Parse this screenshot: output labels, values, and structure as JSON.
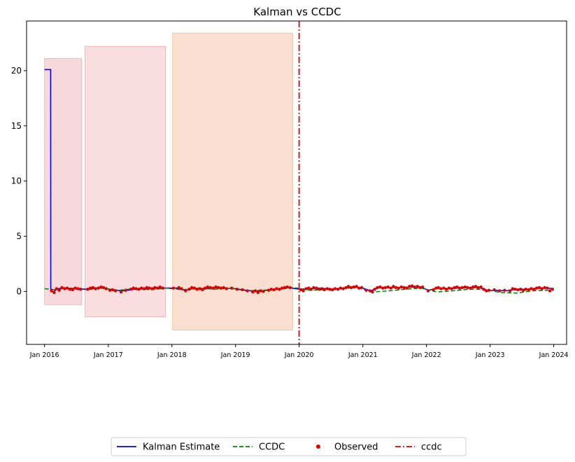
{
  "chart_data": {
    "type": "line",
    "title": "Kalman vs CCDC",
    "xlabel": "",
    "ylabel": "",
    "xlim": [
      "2015-09-20",
      "2024-03-15"
    ],
    "ylim": [
      -4.8,
      24.5
    ],
    "yticks": [
      0,
      5,
      10,
      15,
      20
    ],
    "xticks": [
      {
        "date": "2016-01-01",
        "label": "Jan 2016"
      },
      {
        "date": "2017-01-01",
        "label": "Jan 2017"
      },
      {
        "date": "2018-01-01",
        "label": "Jan 2018"
      },
      {
        "date": "2019-01-01",
        "label": "Jan 2019"
      },
      {
        "date": "2020-01-01",
        "label": "Jan 2020"
      },
      {
        "date": "2021-01-01",
        "label": "Jan 2021"
      },
      {
        "date": "2022-01-01",
        "label": "Jan 2022"
      },
      {
        "date": "2023-01-01",
        "label": "Jan 2023"
      },
      {
        "date": "2024-01-01",
        "label": "Jan 2024"
      }
    ],
    "shaded_regions": [
      {
        "start": "2016-01-01",
        "end": "2016-08-01",
        "ymin": -1.2,
        "ymax": 21.1,
        "color": "#f1b3b8",
        "opacity": 0.5
      },
      {
        "start": "2016-08-20",
        "end": "2017-11-25",
        "ymin": -2.3,
        "ymax": 22.2,
        "color": "#f1b3b8",
        "opacity": 0.45
      },
      {
        "start": "2018-01-05",
        "end": "2019-11-25",
        "ymin": -3.5,
        "ymax": 23.4,
        "color": "#f5bfa2",
        "opacity": 0.5
      }
    ],
    "vline": {
      "date": "2020-01-01",
      "color": "#e00000",
      "style": "dashdot"
    },
    "series": [
      {
        "name": "Kalman Estimate",
        "kind": "line",
        "color": "#0000ff",
        "points": [
          [
            "2016-01-01",
            20.1
          ],
          [
            "2016-02-05",
            20.1
          ],
          [
            "2016-02-06",
            0.0
          ],
          [
            "2016-02-20",
            -0.05
          ],
          [
            "2016-03-15",
            0.25
          ],
          [
            "2016-05-01",
            0.3
          ],
          [
            "2016-07-01",
            0.25
          ],
          [
            "2016-09-01",
            0.2
          ],
          [
            "2016-11-01",
            0.3
          ],
          [
            "2016-12-15",
            0.3
          ],
          [
            "2017-01-20",
            0.1
          ],
          [
            "2017-04-01",
            0.05
          ],
          [
            "2017-06-01",
            0.2
          ],
          [
            "2017-08-01",
            0.25
          ],
          [
            "2017-10-01",
            0.3
          ],
          [
            "2017-12-01",
            0.3
          ],
          [
            "2018-02-01",
            0.3
          ],
          [
            "2018-03-15",
            0.1
          ],
          [
            "2018-05-01",
            0.25
          ],
          [
            "2018-07-01",
            0.2
          ],
          [
            "2018-09-01",
            0.35
          ],
          [
            "2018-11-01",
            0.3
          ],
          [
            "2019-01-01",
            0.25
          ],
          [
            "2019-03-01",
            0.1
          ],
          [
            "2019-05-01",
            0.0
          ],
          [
            "2019-07-01",
            0.1
          ],
          [
            "2019-09-01",
            0.2
          ],
          [
            "2019-11-01",
            0.35
          ],
          [
            "2020-01-01",
            0.2
          ],
          [
            "2020-03-01",
            0.25
          ],
          [
            "2020-05-01",
            0.3
          ],
          [
            "2020-07-01",
            0.2
          ],
          [
            "2020-09-01",
            0.25
          ],
          [
            "2020-11-01",
            0.4
          ],
          [
            "2021-01-01",
            0.3
          ],
          [
            "2021-02-15",
            0.05
          ],
          [
            "2021-04-01",
            0.35
          ],
          [
            "2021-06-01",
            0.35
          ],
          [
            "2021-08-01",
            0.35
          ],
          [
            "2021-10-01",
            0.4
          ],
          [
            "2021-12-01",
            0.35
          ],
          [
            "2022-01-15",
            0.1
          ],
          [
            "2022-03-01",
            0.3
          ],
          [
            "2022-05-01",
            0.25
          ],
          [
            "2022-07-01",
            0.3
          ],
          [
            "2022-09-01",
            0.35
          ],
          [
            "2022-11-01",
            0.35
          ],
          [
            "2022-12-15",
            0.05
          ],
          [
            "2023-02-01",
            0.1
          ],
          [
            "2023-04-01",
            0.05
          ],
          [
            "2023-06-01",
            0.2
          ],
          [
            "2023-08-01",
            0.2
          ],
          [
            "2023-10-01",
            0.3
          ],
          [
            "2023-12-01",
            0.3
          ],
          [
            "2024-01-01",
            0.25
          ]
        ]
      },
      {
        "name": "CCDC",
        "kind": "dashed-line",
        "color": "#008000",
        "points": [
          [
            "2016-01-01",
            0.25
          ],
          [
            "2016-03-01",
            0.15
          ],
          [
            "2016-06-01",
            0.3
          ],
          [
            "2016-09-01",
            0.15
          ],
          [
            "2016-12-01",
            0.3
          ],
          [
            "2017-03-01",
            0.1
          ],
          [
            "2017-06-01",
            0.25
          ],
          [
            "2017-09-01",
            0.15
          ],
          [
            "2017-12-01",
            0.3
          ],
          [
            "2018-03-01",
            0.15
          ],
          [
            "2018-06-01",
            0.3
          ],
          [
            "2018-09-01",
            0.2
          ],
          [
            "2018-12-01",
            0.3
          ],
          [
            "2019-03-01",
            0.05
          ],
          [
            "2019-06-01",
            0.1
          ],
          [
            "2019-09-01",
            0.2
          ],
          [
            "2019-12-01",
            0.35
          ],
          [
            "2020-03-01",
            0.1
          ],
          [
            "2020-06-01",
            0.15
          ],
          [
            "2020-09-01",
            0.25
          ],
          [
            "2020-12-01",
            0.35
          ],
          [
            "2021-03-01",
            -0.05
          ],
          [
            "2021-06-01",
            0.05
          ],
          [
            "2021-09-01",
            0.2
          ],
          [
            "2021-12-01",
            0.3
          ],
          [
            "2022-03-01",
            -0.05
          ],
          [
            "2022-06-01",
            0.05
          ],
          [
            "2022-09-01",
            0.2
          ],
          [
            "2022-12-01",
            0.2
          ],
          [
            "2023-03-01",
            -0.1
          ],
          [
            "2023-06-01",
            -0.15
          ],
          [
            "2023-09-01",
            0.05
          ],
          [
            "2023-12-01",
            0.1
          ]
        ]
      },
      {
        "name": "Observed",
        "kind": "scatter",
        "color": "#e00000",
        "points": [
          [
            "2016-02-10",
            0.05
          ],
          [
            "2016-02-25",
            -0.1
          ],
          [
            "2016-03-10",
            0.25
          ],
          [
            "2016-03-25",
            0.1
          ],
          [
            "2016-04-10",
            0.35
          ],
          [
            "2016-04-25",
            0.25
          ],
          [
            "2016-05-10",
            0.3
          ],
          [
            "2016-05-25",
            0.2
          ],
          [
            "2016-06-10",
            0.15
          ],
          [
            "2016-06-25",
            0.3
          ],
          [
            "2016-07-10",
            0.25
          ],
          [
            "2016-07-25",
            0.2
          ],
          [
            "2016-09-05",
            0.2
          ],
          [
            "2016-09-20",
            0.3
          ],
          [
            "2016-10-05",
            0.35
          ],
          [
            "2016-10-20",
            0.25
          ],
          [
            "2016-11-05",
            0.3
          ],
          [
            "2016-11-20",
            0.4
          ],
          [
            "2016-12-05",
            0.35
          ],
          [
            "2016-12-20",
            0.25
          ],
          [
            "2017-01-10",
            0.1
          ],
          [
            "2017-01-25",
            0.15
          ],
          [
            "2017-02-10",
            0.05
          ],
          [
            "2017-03-15",
            -0.05
          ],
          [
            "2017-04-10",
            0.1
          ],
          [
            "2017-05-10",
            0.2
          ],
          [
            "2017-05-25",
            0.3
          ],
          [
            "2017-06-10",
            0.25
          ],
          [
            "2017-06-25",
            0.2
          ],
          [
            "2017-07-10",
            0.3
          ],
          [
            "2017-07-25",
            0.25
          ],
          [
            "2017-08-10",
            0.35
          ],
          [
            "2017-08-25",
            0.3
          ],
          [
            "2017-09-10",
            0.25
          ],
          [
            "2017-09-25",
            0.35
          ],
          [
            "2017-10-10",
            0.3
          ],
          [
            "2017-10-25",
            0.4
          ],
          [
            "2017-11-10",
            0.3
          ],
          [
            "2018-01-10",
            0.3
          ],
          [
            "2018-02-10",
            0.35
          ],
          [
            "2018-02-25",
            0.25
          ],
          [
            "2018-03-20",
            0.05
          ],
          [
            "2018-04-10",
            0.2
          ],
          [
            "2018-04-25",
            0.35
          ],
          [
            "2018-05-10",
            0.3
          ],
          [
            "2018-05-25",
            0.2
          ],
          [
            "2018-06-10",
            0.25
          ],
          [
            "2018-06-25",
            0.15
          ],
          [
            "2018-07-10",
            0.3
          ],
          [
            "2018-07-25",
            0.4
          ],
          [
            "2018-08-10",
            0.35
          ],
          [
            "2018-08-25",
            0.3
          ],
          [
            "2018-09-10",
            0.4
          ],
          [
            "2018-09-25",
            0.35
          ],
          [
            "2018-10-10",
            0.3
          ],
          [
            "2018-10-25",
            0.35
          ],
          [
            "2018-11-10",
            0.25
          ],
          [
            "2018-12-10",
            0.3
          ],
          [
            "2019-01-10",
            0.2
          ],
          [
            "2019-02-10",
            0.15
          ],
          [
            "2019-03-10",
            0.05
          ],
          [
            "2019-04-10",
            -0.05
          ],
          [
            "2019-04-25",
            0.05
          ],
          [
            "2019-05-10",
            -0.1
          ],
          [
            "2019-05-25",
            0.05
          ],
          [
            "2019-06-10",
            0.0
          ],
          [
            "2019-07-10",
            0.1
          ],
          [
            "2019-07-25",
            0.2
          ],
          [
            "2019-08-10",
            0.15
          ],
          [
            "2019-08-25",
            0.25
          ],
          [
            "2019-09-10",
            0.2
          ],
          [
            "2019-09-25",
            0.3
          ],
          [
            "2019-10-10",
            0.35
          ],
          [
            "2019-10-25",
            0.4
          ],
          [
            "2019-11-10",
            0.35
          ],
          [
            "2020-01-10",
            0.15
          ],
          [
            "2020-01-25",
            0.05
          ],
          [
            "2020-02-10",
            0.25
          ],
          [
            "2020-02-25",
            0.3
          ],
          [
            "2020-03-10",
            0.2
          ],
          [
            "2020-03-25",
            0.35
          ],
          [
            "2020-04-10",
            0.3
          ],
          [
            "2020-04-25",
            0.2
          ],
          [
            "2020-05-10",
            0.25
          ],
          [
            "2020-05-25",
            0.15
          ],
          [
            "2020-06-10",
            0.25
          ],
          [
            "2020-06-25",
            0.2
          ],
          [
            "2020-07-10",
            0.15
          ],
          [
            "2020-07-25",
            0.25
          ],
          [
            "2020-08-10",
            0.2
          ],
          [
            "2020-08-25",
            0.3
          ],
          [
            "2020-09-10",
            0.25
          ],
          [
            "2020-09-25",
            0.35
          ],
          [
            "2020-10-10",
            0.45
          ],
          [
            "2020-10-25",
            0.35
          ],
          [
            "2020-11-10",
            0.4
          ],
          [
            "2020-11-25",
            0.45
          ],
          [
            "2020-12-10",
            0.3
          ],
          [
            "2020-12-25",
            0.35
          ],
          [
            "2021-01-20",
            0.1
          ],
          [
            "2021-02-10",
            0.05
          ],
          [
            "2021-02-25",
            -0.05
          ],
          [
            "2021-03-10",
            0.2
          ],
          [
            "2021-03-25",
            0.35
          ],
          [
            "2021-04-10",
            0.4
          ],
          [
            "2021-04-25",
            0.3
          ],
          [
            "2021-05-10",
            0.35
          ],
          [
            "2021-05-25",
            0.4
          ],
          [
            "2021-06-10",
            0.3
          ],
          [
            "2021-06-25",
            0.45
          ],
          [
            "2021-07-10",
            0.35
          ],
          [
            "2021-07-25",
            0.3
          ],
          [
            "2021-08-10",
            0.4
          ],
          [
            "2021-08-25",
            0.35
          ],
          [
            "2021-09-10",
            0.3
          ],
          [
            "2021-09-25",
            0.45
          ],
          [
            "2021-10-10",
            0.5
          ],
          [
            "2021-10-25",
            0.4
          ],
          [
            "2021-11-10",
            0.45
          ],
          [
            "2021-11-25",
            0.35
          ],
          [
            "2021-12-10",
            0.4
          ],
          [
            "2022-01-10",
            0.05
          ],
          [
            "2022-02-10",
            0.15
          ],
          [
            "2022-02-25",
            0.3
          ],
          [
            "2022-03-10",
            0.35
          ],
          [
            "2022-03-25",
            0.25
          ],
          [
            "2022-04-10",
            0.3
          ],
          [
            "2022-04-25",
            0.2
          ],
          [
            "2022-05-10",
            0.3
          ],
          [
            "2022-05-25",
            0.25
          ],
          [
            "2022-06-10",
            0.35
          ],
          [
            "2022-06-25",
            0.4
          ],
          [
            "2022-07-10",
            0.3
          ],
          [
            "2022-07-25",
            0.35
          ],
          [
            "2022-08-10",
            0.4
          ],
          [
            "2022-08-25",
            0.35
          ],
          [
            "2022-09-10",
            0.3
          ],
          [
            "2022-09-25",
            0.4
          ],
          [
            "2022-10-10",
            0.45
          ],
          [
            "2022-10-25",
            0.35
          ],
          [
            "2022-11-10",
            0.4
          ],
          [
            "2022-11-25",
            0.2
          ],
          [
            "2022-12-10",
            0.05
          ],
          [
            "2022-12-25",
            0.1
          ],
          [
            "2023-01-25",
            0.15
          ],
          [
            "2023-02-25",
            0.05
          ],
          [
            "2023-03-25",
            0.1
          ],
          [
            "2023-04-25",
            0.05
          ],
          [
            "2023-05-10",
            0.25
          ],
          [
            "2023-05-25",
            0.2
          ],
          [
            "2023-06-10",
            0.15
          ],
          [
            "2023-06-25",
            0.2
          ],
          [
            "2023-07-10",
            0.1
          ],
          [
            "2023-07-25",
            0.2
          ],
          [
            "2023-08-10",
            0.15
          ],
          [
            "2023-08-25",
            0.25
          ],
          [
            "2023-09-10",
            0.2
          ],
          [
            "2023-09-25",
            0.3
          ],
          [
            "2023-10-10",
            0.35
          ],
          [
            "2023-10-25",
            0.25
          ],
          [
            "2023-11-10",
            0.35
          ],
          [
            "2023-11-25",
            0.3
          ],
          [
            "2023-12-10",
            0.05
          ],
          [
            "2023-12-25",
            0.2
          ]
        ]
      }
    ],
    "legend": {
      "placement": "bottom-center",
      "entries": [
        {
          "label": "Kalman Estimate",
          "style": "line",
          "color": "#0000ff"
        },
        {
          "label": "CCDC",
          "style": "dashed",
          "color": "#008000"
        },
        {
          "label": "Observed",
          "style": "marker",
          "color": "#e00000"
        },
        {
          "label": "ccdc",
          "style": "dashdot",
          "color": "#e00000"
        }
      ]
    },
    "grid": false
  }
}
